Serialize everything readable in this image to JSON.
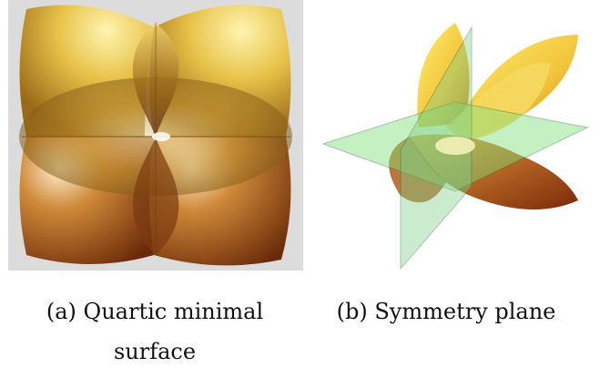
{
  "figures": [
    {
      "id": "a",
      "caption_label": "(a)",
      "caption_line1": "Quartic minimal",
      "caption_line2": "surface",
      "background": "#dcdcdc"
    },
    {
      "id": "b",
      "caption_label": "(b)",
      "caption_line1": "Symmetry plane"
    }
  ],
  "colors": {
    "gold_light": "#f5e18a",
    "gold": "#d9b23a",
    "bronze": "#a9701e",
    "rust": "#8a3a10",
    "plane_green": "#9fe39a"
  }
}
